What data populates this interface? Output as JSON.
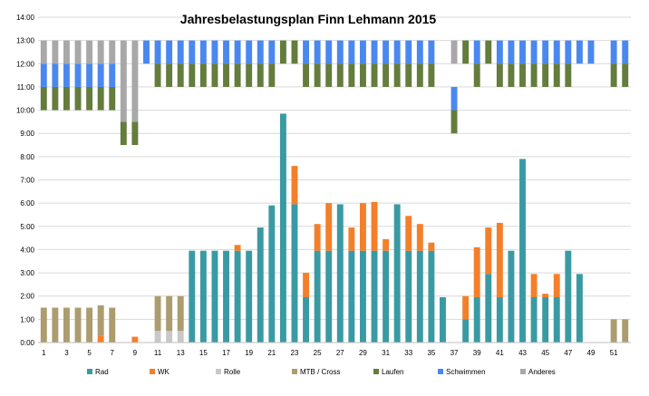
{
  "chart_data": {
    "type": "bar",
    "stacked": true,
    "title": "Jahresbelastungsplan Finn Lehmann 2015",
    "ylim": [
      0,
      14
    ],
    "yticks": [
      "0:00",
      "1:00",
      "2:00",
      "3:00",
      "4:00",
      "5:00",
      "6:00",
      "7:00",
      "8:00",
      "9:00",
      "10:00",
      "11:00",
      "12:00",
      "13:00",
      "14:00"
    ],
    "weeks": [
      1,
      2,
      3,
      4,
      5,
      6,
      7,
      8,
      9,
      10,
      11,
      12,
      13,
      14,
      15,
      16,
      17,
      18,
      19,
      20,
      21,
      22,
      23,
      24,
      25,
      26,
      27,
      28,
      29,
      30,
      31,
      32,
      33,
      34,
      35,
      36,
      37,
      38,
      39,
      40,
      41,
      42,
      43,
      44,
      45,
      46,
      47,
      48,
      49,
      50,
      51,
      52
    ],
    "xtick_labels": [
      "1",
      "3",
      "5",
      "7",
      "9",
      "11",
      "13",
      "15",
      "17",
      "19",
      "21",
      "23",
      "25",
      "27",
      "29",
      "31",
      "33",
      "35",
      "37",
      "39",
      "41",
      "43",
      "45",
      "47",
      "49",
      "51"
    ],
    "grid": true,
    "legend_position": "bottom",
    "series": [
      {
        "name": "Rad",
        "color": "#3a9aa4",
        "values": [
          0,
          0,
          0,
          0,
          0,
          0,
          0,
          0,
          0,
          0,
          0,
          0,
          0,
          3.95,
          3.95,
          3.95,
          3.95,
          3.95,
          3.95,
          4.95,
          5.9,
          9.85,
          5.95,
          1.95,
          3.95,
          3.95,
          5.95,
          3.95,
          3.95,
          3.95,
          3.95,
          5.95,
          3.95,
          3.95,
          3.95,
          1.95,
          0,
          1.0,
          1.95,
          2.95,
          1.95,
          3.95,
          7.9,
          1.95,
          1.95,
          1.95,
          3.95,
          2.95,
          0,
          0,
          0,
          0
        ]
      },
      {
        "name": "WK",
        "color": "#f47f2a",
        "values": [
          0,
          0,
          0,
          0,
          0,
          0.3,
          0,
          0,
          0.25,
          0,
          0,
          0,
          0,
          0,
          0,
          0,
          0,
          0.25,
          0,
          0,
          0,
          0,
          1.65,
          1.05,
          1.15,
          2.05,
          0,
          1.0,
          2.05,
          2.1,
          0.5,
          0,
          1.5,
          1.15,
          0.35,
          0,
          0,
          1.0,
          2.15,
          2.0,
          3.2,
          0,
          0,
          1.0,
          0.15,
          1.0,
          0,
          0,
          0,
          0,
          0,
          0
        ]
      },
      {
        "name": "Rolle",
        "color": "#c8c8c8",
        "values": [
          0,
          0,
          0,
          0,
          0,
          0,
          0,
          0,
          0,
          0,
          0.5,
          0.5,
          0.5,
          0,
          0,
          0,
          0,
          0,
          0,
          0,
          0,
          0,
          0,
          0,
          0,
          0,
          0,
          0,
          0,
          0,
          0,
          0,
          0,
          0,
          0,
          0,
          0,
          0,
          0,
          0,
          0,
          0,
          0,
          0,
          0,
          0,
          0,
          0,
          0,
          0,
          0,
          0
        ]
      },
      {
        "name": "MTB / Cross",
        "color": "#ac9c6e",
        "values": [
          1.5,
          1.5,
          1.5,
          1.5,
          1.5,
          1.3,
          1.5,
          0,
          0,
          0,
          1.5,
          1.5,
          1.5,
          0,
          0,
          0,
          0,
          0,
          0,
          0,
          0,
          0,
          0,
          0,
          0,
          0,
          0,
          0,
          0,
          0,
          0,
          0,
          0,
          0,
          0,
          0,
          0,
          0,
          0,
          0,
          0,
          0,
          0,
          0,
          0,
          0,
          0,
          0,
          0,
          0,
          1.0,
          1.0
        ]
      },
      {
        "name": "Laufen",
        "color": "#647c3c",
        "ranges": [
          [
            10,
            11
          ],
          [
            10,
            11
          ],
          [
            10,
            11
          ],
          [
            10,
            11
          ],
          [
            10,
            11
          ],
          [
            10,
            11
          ],
          [
            10,
            11
          ],
          [
            8.5,
            9.5
          ],
          [
            8.5,
            9.5
          ],
          null,
          [
            11,
            12
          ],
          [
            11,
            12
          ],
          [
            11,
            12
          ],
          [
            11,
            12
          ],
          [
            11,
            12
          ],
          [
            11,
            12
          ],
          [
            11,
            12
          ],
          [
            11,
            12
          ],
          [
            11,
            12
          ],
          [
            11,
            12
          ],
          [
            11,
            12
          ],
          [
            12,
            13
          ],
          [
            12,
            13
          ],
          [
            11,
            12
          ],
          [
            11,
            12
          ],
          [
            11,
            12
          ],
          [
            11,
            12
          ],
          [
            11,
            12
          ],
          [
            11,
            12
          ],
          [
            11,
            12
          ],
          [
            11,
            12
          ],
          [
            11,
            12
          ],
          [
            11,
            12
          ],
          [
            11,
            12
          ],
          [
            11,
            12
          ],
          null,
          [
            9,
            10
          ],
          [
            12,
            13
          ],
          [
            11,
            12
          ],
          [
            12,
            13
          ],
          [
            11,
            12
          ],
          [
            11,
            12
          ],
          [
            11,
            12
          ],
          [
            11,
            12
          ],
          [
            11,
            12
          ],
          [
            11,
            12
          ],
          [
            11,
            12
          ],
          null,
          null,
          null,
          [
            11,
            12
          ],
          [
            11,
            12
          ]
        ]
      },
      {
        "name": "Schwimmen",
        "color": "#4a88f0",
        "ranges": [
          [
            11,
            12
          ],
          [
            11,
            12
          ],
          [
            11,
            12
          ],
          [
            11,
            12
          ],
          [
            11,
            12
          ],
          [
            11,
            12
          ],
          [
            11,
            12
          ],
          null,
          null,
          [
            12,
            13
          ],
          [
            12,
            13
          ],
          [
            12,
            13
          ],
          [
            12,
            13
          ],
          [
            12,
            13
          ],
          [
            12,
            13
          ],
          [
            12,
            13
          ],
          [
            12,
            13
          ],
          [
            12,
            13
          ],
          [
            12,
            13
          ],
          [
            12,
            13
          ],
          [
            12,
            13
          ],
          null,
          null,
          [
            12,
            13
          ],
          [
            12,
            13
          ],
          [
            12,
            13
          ],
          [
            12,
            13
          ],
          [
            12,
            13
          ],
          [
            12,
            13
          ],
          [
            12,
            13
          ],
          [
            12,
            13
          ],
          [
            12,
            13
          ],
          [
            12,
            13
          ],
          [
            12,
            13
          ],
          [
            12,
            13
          ],
          null,
          [
            10,
            11
          ],
          null,
          [
            12,
            13
          ],
          null,
          [
            12,
            13
          ],
          [
            12,
            13
          ],
          [
            12,
            13
          ],
          [
            12,
            13
          ],
          [
            12,
            13
          ],
          [
            12,
            13
          ],
          [
            12,
            13
          ],
          [
            12,
            13
          ],
          [
            12,
            13
          ],
          null,
          [
            12,
            13
          ],
          [
            12,
            13
          ]
        ]
      },
      {
        "name": "Anderes",
        "color": "#a8a8a8",
        "ranges": [
          [
            12,
            13
          ],
          [
            12,
            13
          ],
          [
            12,
            13
          ],
          [
            12,
            13
          ],
          [
            12,
            13
          ],
          [
            12,
            13
          ],
          [
            12,
            13
          ],
          [
            9.5,
            13
          ],
          [
            9.5,
            13
          ],
          null,
          null,
          null,
          null,
          null,
          null,
          null,
          null,
          null,
          null,
          null,
          null,
          null,
          null,
          null,
          null,
          null,
          null,
          null,
          null,
          null,
          null,
          null,
          null,
          null,
          null,
          null,
          [
            12,
            13
          ],
          null,
          null,
          null,
          null,
          null,
          null,
          null,
          null,
          null,
          null,
          null,
          null,
          null,
          null,
          null
        ]
      }
    ]
  }
}
